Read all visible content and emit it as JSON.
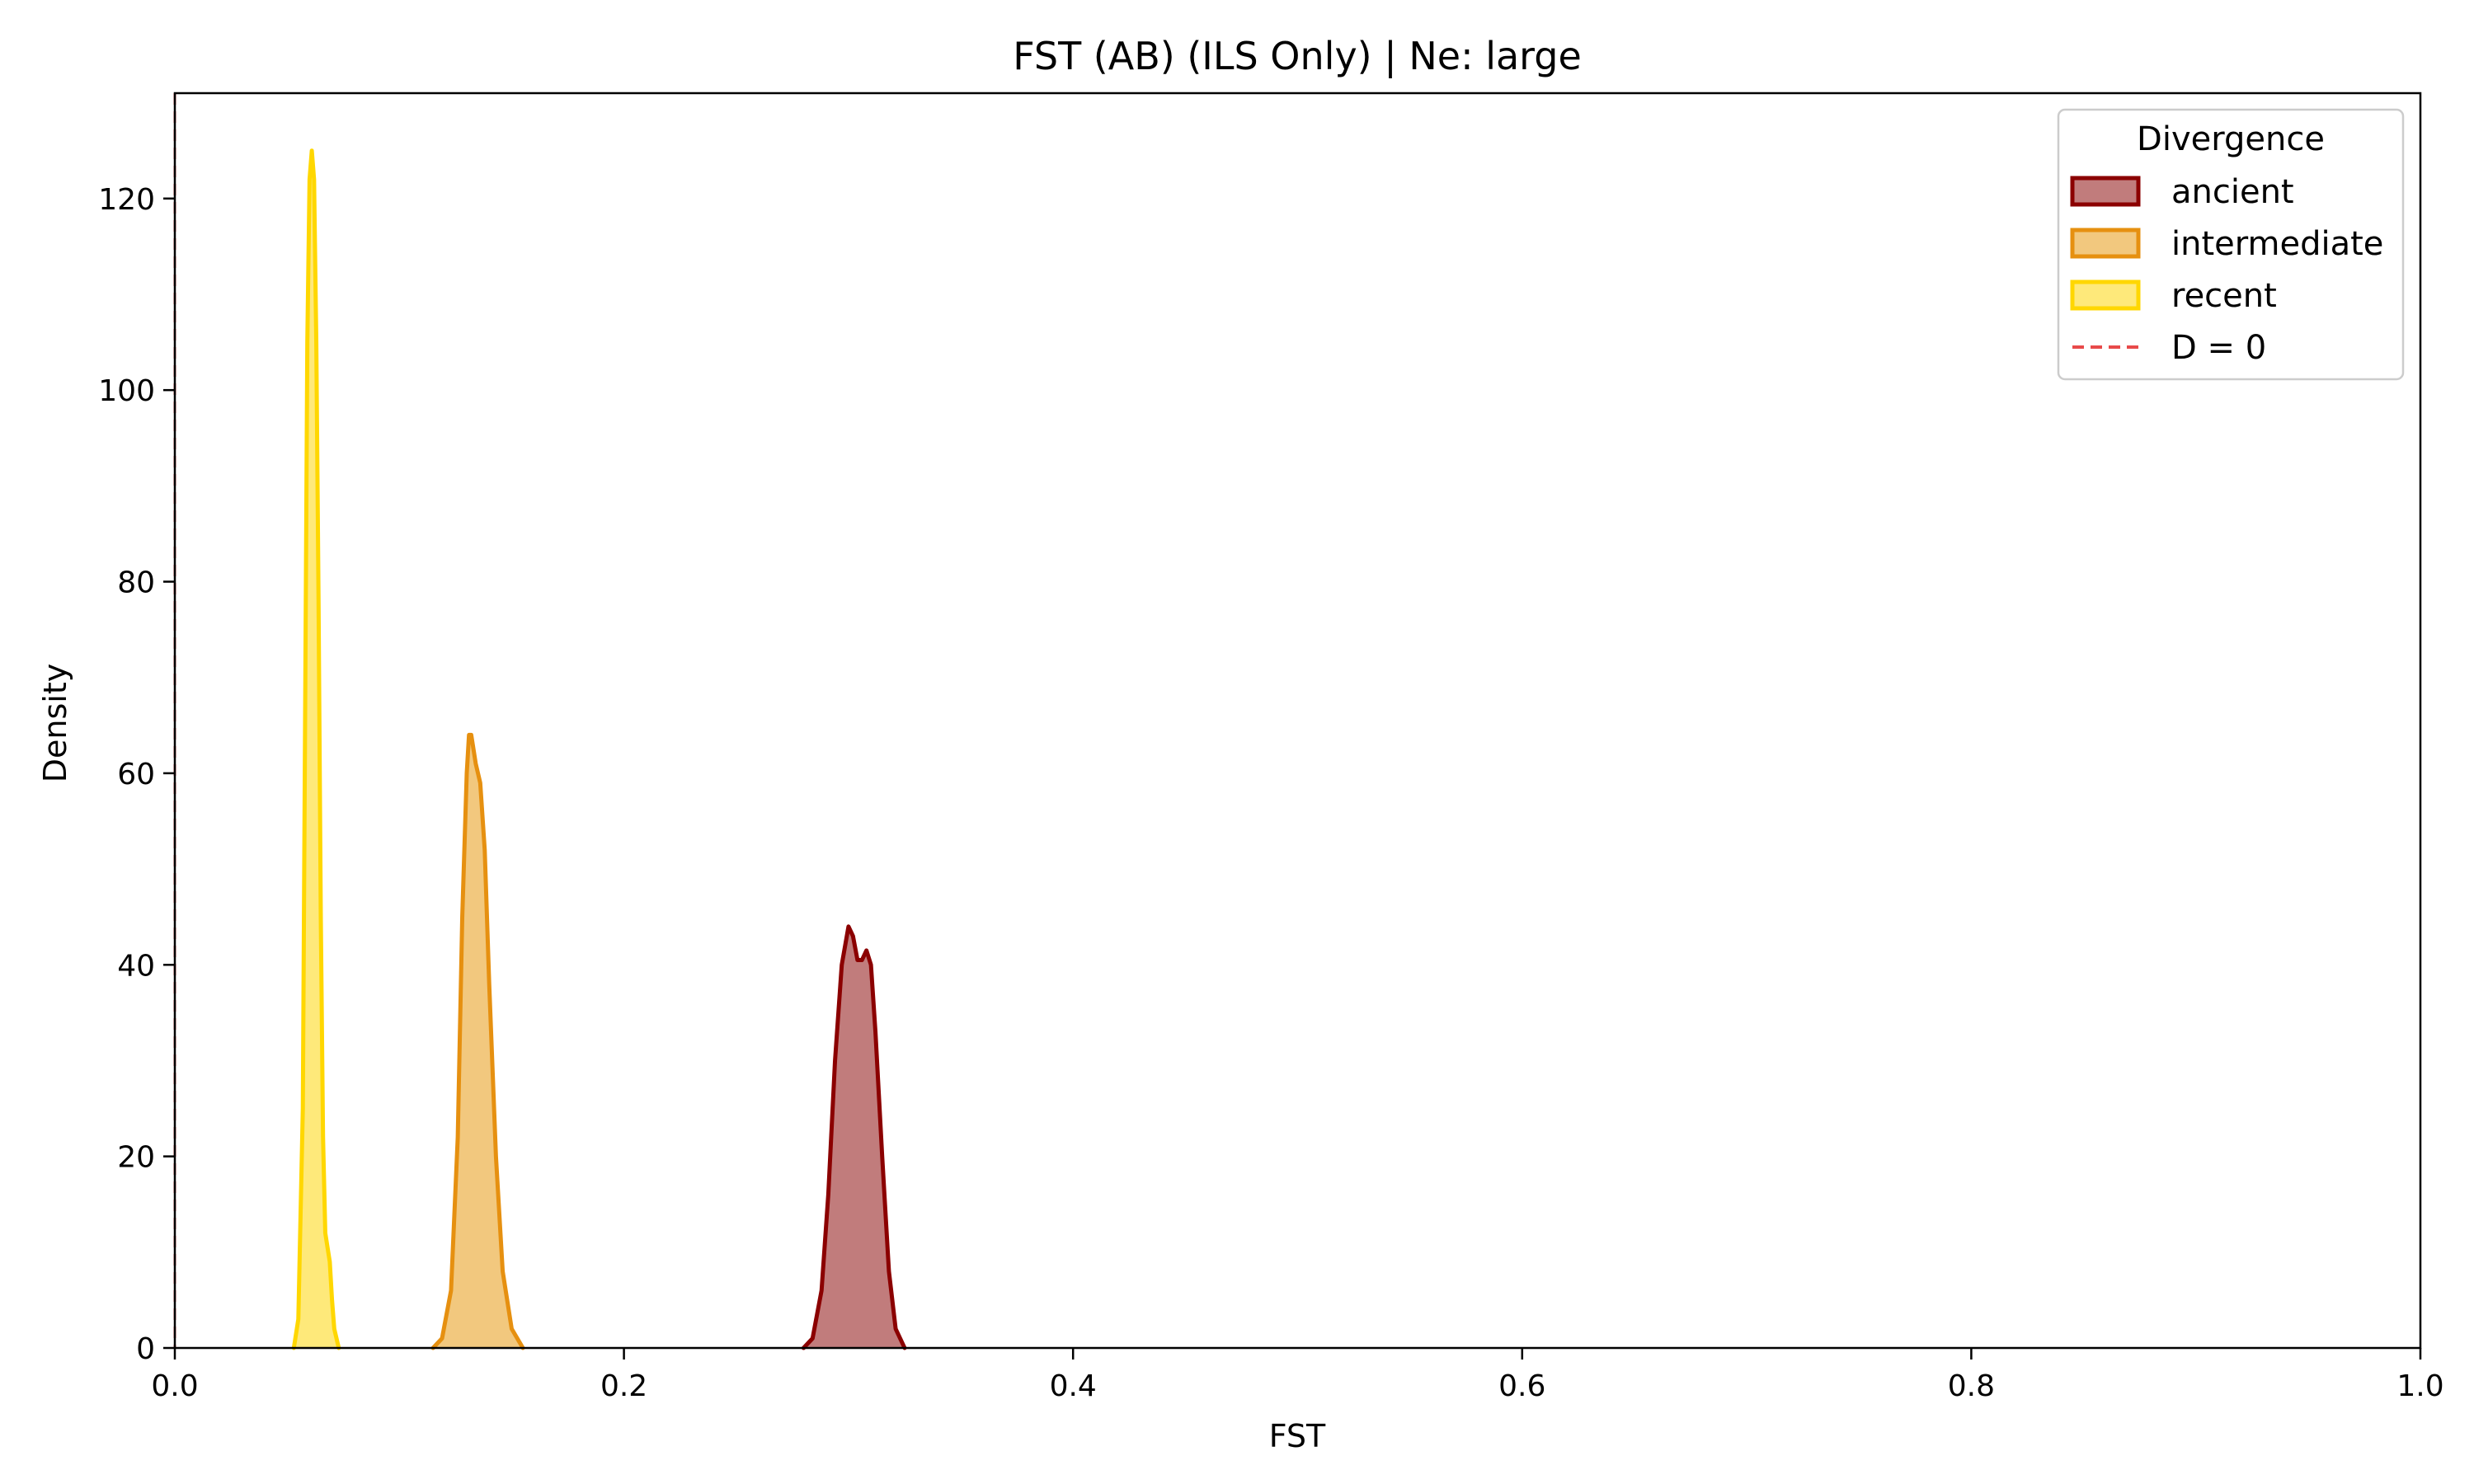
{
  "chart_data": {
    "type": "area",
    "title": "FST (AB) (ILS Only) | Ne: large",
    "xlabel": "FST",
    "ylabel": "Density",
    "xlim": [
      0.0,
      1.0
    ],
    "ylim": [
      0,
      131
    ],
    "xticks": [
      0.0,
      0.2,
      0.4,
      0.6,
      0.8,
      1.0
    ],
    "xtick_labels": [
      "0.0",
      "0.2",
      "0.4",
      "0.6",
      "0.8",
      "1.0"
    ],
    "yticks": [
      0,
      20,
      40,
      60,
      80,
      100,
      120
    ],
    "ytick_labels": [
      "0",
      "20",
      "40",
      "60",
      "80",
      "100",
      "120"
    ],
    "grid": false,
    "legend": {
      "title": "Divergence",
      "placement": "top-right",
      "entries": [
        "ancient",
        "intermediate",
        "recent",
        "D = 0"
      ]
    },
    "series": [
      {
        "name": "ancient",
        "color": "#8B0000",
        "fill": "#C17C7C",
        "points": [
          [
            0.28,
            0
          ],
          [
            0.284,
            1
          ],
          [
            0.288,
            6
          ],
          [
            0.291,
            16
          ],
          [
            0.294,
            30
          ],
          [
            0.297,
            40
          ],
          [
            0.3,
            44
          ],
          [
            0.302,
            43
          ],
          [
            0.304,
            40.5
          ],
          [
            0.306,
            40.5
          ],
          [
            0.308,
            41.5
          ],
          [
            0.31,
            40
          ],
          [
            0.312,
            33
          ],
          [
            0.315,
            20
          ],
          [
            0.318,
            8
          ],
          [
            0.321,
            2
          ],
          [
            0.325,
            0
          ]
        ]
      },
      {
        "name": "intermediate",
        "color": "#E69010",
        "fill": "#F2C87E",
        "points": [
          [
            0.115,
            0
          ],
          [
            0.119,
            1
          ],
          [
            0.123,
            6
          ],
          [
            0.126,
            22
          ],
          [
            0.128,
            45
          ],
          [
            0.13,
            60
          ],
          [
            0.131,
            64
          ],
          [
            0.132,
            64
          ],
          [
            0.134,
            61
          ],
          [
            0.136,
            59
          ],
          [
            0.138,
            52
          ],
          [
            0.14,
            38
          ],
          [
            0.143,
            20
          ],
          [
            0.146,
            8
          ],
          [
            0.15,
            2
          ],
          [
            0.155,
            0
          ]
        ]
      },
      {
        "name": "recent",
        "color": "#FFD700",
        "fill": "#FEE97A",
        "points": [
          [
            0.053,
            0
          ],
          [
            0.055,
            3
          ],
          [
            0.057,
            25
          ],
          [
            0.058,
            65
          ],
          [
            0.059,
            105
          ],
          [
            0.06,
            122
          ],
          [
            0.061,
            125
          ],
          [
            0.062,
            122
          ],
          [
            0.063,
            105
          ],
          [
            0.064,
            78
          ],
          [
            0.065,
            45
          ],
          [
            0.066,
            22
          ],
          [
            0.067,
            12
          ],
          [
            0.068,
            10.5
          ],
          [
            0.069,
            9
          ],
          [
            0.07,
            5
          ],
          [
            0.071,
            2
          ],
          [
            0.073,
            0
          ]
        ]
      },
      {
        "name": "D = 0",
        "type": "vline",
        "x": 0.0,
        "color": "#E84A4A",
        "style": "dashed"
      }
    ]
  }
}
